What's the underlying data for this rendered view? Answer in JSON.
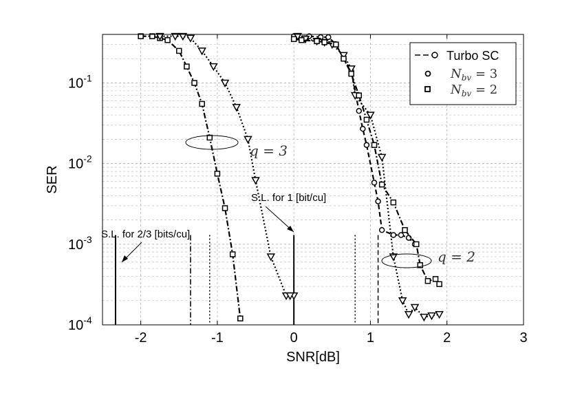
{
  "chart_data": {
    "type": "line",
    "xlabel": "SNR[dB]",
    "ylabel": "SER",
    "xlim": [
      -2.5,
      3
    ],
    "ylim": [
      0.0001,
      0.4
    ],
    "yscale": "log",
    "grid": true,
    "x_ticks": [
      "-2",
      "-1",
      "0",
      "1",
      "2",
      "3"
    ],
    "y_ticks": [
      {
        "value": 0.1,
        "base": "10",
        "exp": "-1"
      },
      {
        "value": 0.01,
        "base": "10",
        "exp": "-2"
      },
      {
        "value": 0.001,
        "base": "10",
        "exp": "-3"
      },
      {
        "value": 0.0001,
        "base": "10",
        "exp": "-4"
      }
    ],
    "legend": {
      "position": "top-right",
      "entries": [
        {
          "label": "Turbo SC",
          "marker": "line-circle"
        },
        {
          "label_base": "N",
          "label_sub": "bv",
          "label_rest": " = 3",
          "marker": "circle"
        },
        {
          "label_base": "N",
          "label_sub": "bv",
          "label_rest": " = 2",
          "marker": "square"
        }
      ]
    },
    "series": [
      {
        "group": "q3",
        "line": "dashdot",
        "marker": "square",
        "x": [
          -2.0,
          -1.85,
          -1.75,
          -1.65,
          -1.5,
          -1.4,
          -1.3,
          -1.2,
          -1.1,
          -1.0,
          -0.9,
          -0.8,
          -0.7
        ],
        "y": [
          0.38,
          0.38,
          0.36,
          0.34,
          0.25,
          0.16,
          0.1,
          0.055,
          0.021,
          0.0075,
          0.0028,
          0.00075,
          0.00012
        ]
      },
      {
        "group": "q3",
        "line": "dotted",
        "marker": "triangle-down",
        "x": [
          -1.75,
          -1.55,
          -1.45,
          -1.35,
          -1.2,
          -1.05,
          -0.9,
          -0.75,
          -0.6,
          -0.5,
          -0.3,
          -0.1,
          0.0,
          -0.05
        ],
        "y": [
          0.38,
          0.38,
          0.38,
          0.36,
          0.25,
          0.16,
          0.1,
          0.05,
          0.02,
          0.0062,
          0.0007,
          0.00023,
          0.00023,
          0.00023
        ]
      },
      {
        "group": "q2",
        "line": "dashed",
        "marker": "circle",
        "x": [
          0.0,
          0.2,
          0.35,
          0.45,
          0.55,
          0.65,
          0.75,
          0.85,
          0.9,
          0.95,
          1.05,
          1.1,
          1.15,
          1.3,
          1.4,
          1.5,
          1.58
        ],
        "y": [
          0.38,
          0.38,
          0.37,
          0.37,
          0.3,
          0.2,
          0.14,
          0.045,
          0.027,
          0.017,
          0.0058,
          0.0034,
          0.0015,
          0.0013,
          0.0013,
          0.0012,
          0.001
        ]
      },
      {
        "group": "q2",
        "line": "dotted",
        "marker": "triangle-down",
        "x": [
          0.05,
          0.15,
          0.3,
          0.4,
          0.5,
          0.65,
          0.75,
          0.8,
          1.0,
          1.15,
          1.3,
          1.42,
          1.5,
          1.58,
          1.7,
          1.8,
          1.9
        ],
        "y": [
          0.38,
          0.35,
          0.33,
          0.32,
          0.3,
          0.22,
          0.15,
          0.07,
          0.04,
          0.012,
          0.0007,
          0.0002,
          0.000135,
          0.000165,
          0.000125,
          0.00013,
          0.000135
        ]
      },
      {
        "group": "q2",
        "line": "dashdot",
        "marker": "square",
        "x": [
          0.0,
          0.1,
          0.3,
          0.4,
          0.55,
          0.65,
          0.75,
          0.85,
          0.95,
          1.05,
          1.15,
          1.3,
          1.45,
          1.6,
          1.65,
          1.75,
          1.85,
          1.9
        ],
        "y": [
          0.35,
          0.34,
          0.33,
          0.32,
          0.3,
          0.2,
          0.13,
          0.07,
          0.035,
          0.017,
          0.0055,
          0.0033,
          0.0015,
          0.001,
          0.00055,
          0.00035,
          0.00037,
          0.00032
        ]
      }
    ],
    "vertical_lines": [
      {
        "x": -2.33,
        "style": "solid"
      },
      {
        "x": -1.35,
        "style": "dashdot"
      },
      {
        "x": -1.1,
        "style": "dotted"
      },
      {
        "x": 0.0,
        "style": "solid"
      },
      {
        "x": 0.8,
        "style": "dotted"
      },
      {
        "x": 1.1,
        "style": "dashed"
      }
    ],
    "annotations": {
      "sl_one": "S.L. for 1 [bit/cu]",
      "sl_two_thirds": "S.L. for 2/3 [bits/cu]",
      "q3": "q = 3",
      "q2": "q = 2"
    }
  }
}
